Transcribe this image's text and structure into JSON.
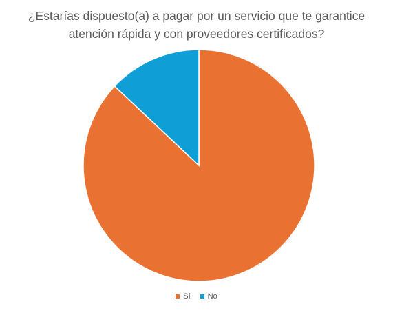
{
  "chart_data": {
    "type": "pie",
    "title_lines": [
      "¿Estarías dispuesto(a) a pagar por un servicio que te garantice",
      "atención rápida y con proveedores certificados?"
    ],
    "categories": [
      "Sí",
      "No"
    ],
    "values": [
      87,
      13
    ],
    "colors": [
      "#E97132",
      "#0F9ED5"
    ],
    "legend_position": "bottom"
  }
}
